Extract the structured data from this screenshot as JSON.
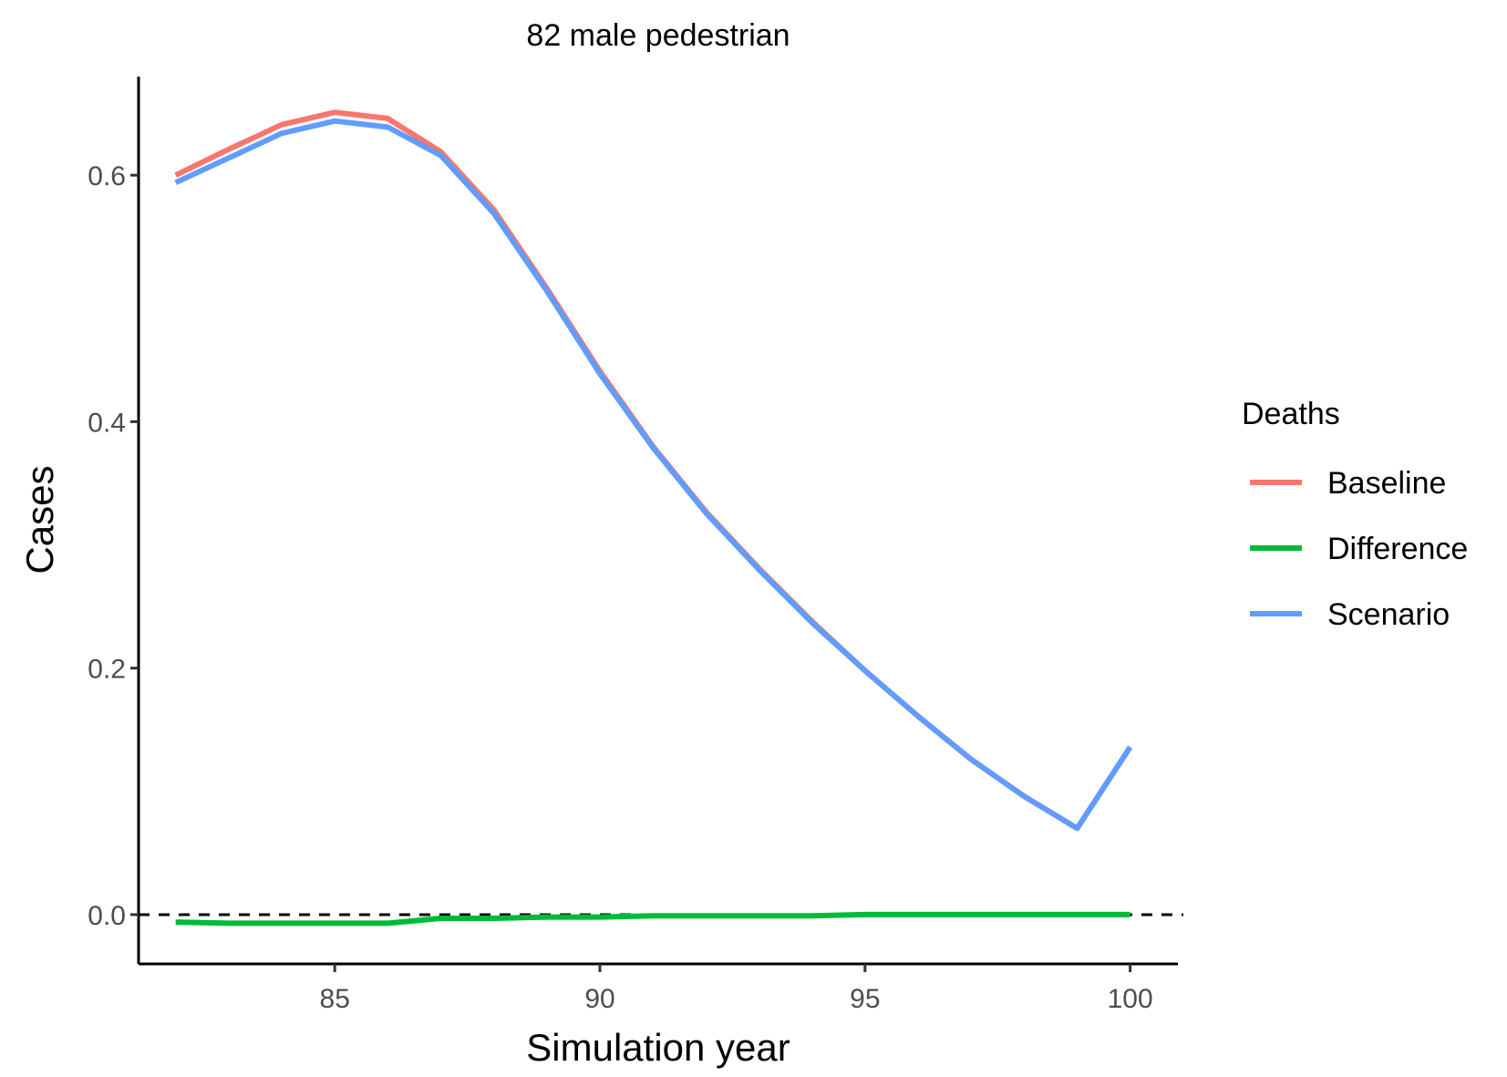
{
  "chart_data": {
    "type": "line",
    "title": "82 male pedestrian",
    "xlabel": "Simulation year",
    "ylabel": "Cases",
    "xlim": [
      81.3,
      100.9
    ],
    "ylim": [
      -0.04,
      0.68
    ],
    "xticks": [
      85,
      90,
      95,
      100
    ],
    "xtick_labels": [
      "85",
      "90",
      "95",
      "100"
    ],
    "yticks": [
      0.0,
      0.2,
      0.4,
      0.6
    ],
    "ytick_labels": [
      "0.0",
      "0.2",
      "0.4",
      "0.6"
    ],
    "grid": false,
    "reference_line": {
      "y": 0,
      "style": "dashed",
      "color": "#000000"
    },
    "legend": {
      "title": "Deaths",
      "placement": "right"
    },
    "x": [
      82,
      83,
      84,
      85,
      86,
      87,
      88,
      89,
      90,
      91,
      92,
      93,
      94,
      95,
      96,
      97,
      98,
      99,
      100
    ],
    "series": [
      {
        "name": "Baseline",
        "color": "#F8766D",
        "values": [
          0.6,
          0.621,
          0.641,
          0.651,
          0.646,
          0.619,
          0.572,
          0.508,
          0.441,
          0.38,
          0.327,
          0.281,
          0.238,
          0.198,
          0.161,
          0.126,
          0.096,
          0.07,
          0.136
        ]
      },
      {
        "name": "Difference",
        "color": "#00BA38",
        "values": [
          -0.006,
          -0.007,
          -0.007,
          -0.007,
          -0.007,
          -0.003,
          -0.003,
          -0.002,
          -0.002,
          -0.001,
          -0.001,
          -0.001,
          -0.001,
          0.0,
          0.0,
          0.0,
          0.0,
          0.0,
          0.0
        ]
      },
      {
        "name": "Scenario",
        "color": "#619CFF",
        "values": [
          0.594,
          0.614,
          0.634,
          0.644,
          0.639,
          0.616,
          0.569,
          0.506,
          0.439,
          0.379,
          0.326,
          0.28,
          0.237,
          0.198,
          0.161,
          0.126,
          0.096,
          0.07,
          0.136
        ]
      }
    ]
  }
}
